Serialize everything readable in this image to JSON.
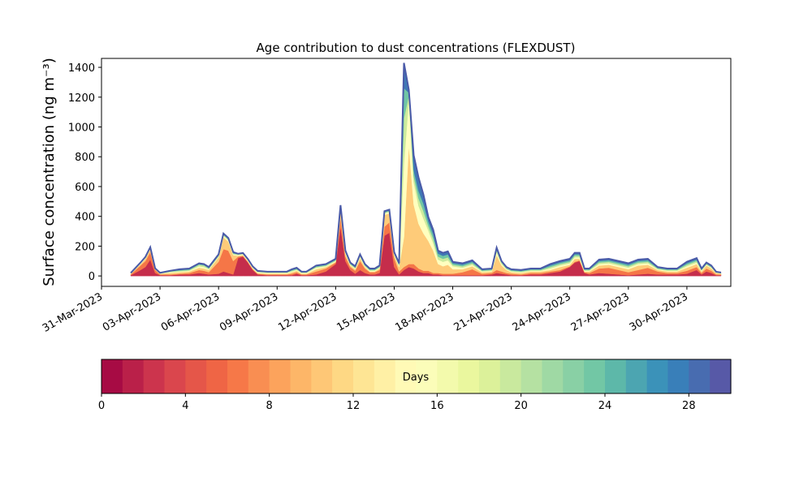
{
  "chart_data": {
    "type": "area",
    "title": "Age contribution to dust concentrations (FLEXDUST)",
    "ylabel": "Surface concentration (ng m⁻³)",
    "xlabel": "",
    "ylim": [
      -70,
      1460
    ],
    "xlim": [
      "2023-03-31T00:00",
      "2023-05-02T06:00"
    ],
    "yticks": [
      0,
      200,
      400,
      600,
      800,
      1000,
      1200,
      1400
    ],
    "xticks": [
      "31-Mar-2023",
      "03-Apr-2023",
      "06-Apr-2023",
      "09-Apr-2023",
      "12-Apr-2023",
      "15-Apr-2023",
      "18-Apr-2023",
      "21-Apr-2023",
      "24-Apr-2023",
      "27-Apr-2023",
      "30-Apr-2023"
    ],
    "x": [
      "2023-04-01T12:00",
      "2023-04-02T00:00",
      "2023-04-02T06:00",
      "2023-04-02T12:00",
      "2023-04-02T18:00",
      "2023-04-03T00:00",
      "2023-04-03T12:00",
      "2023-04-04T00:00",
      "2023-04-04T12:00",
      "2023-04-05T00:00",
      "2023-04-05T06:00",
      "2023-04-05T12:00",
      "2023-04-06T00:00",
      "2023-04-06T06:00",
      "2023-04-06T12:00",
      "2023-04-06T18:00",
      "2023-04-07T00:00",
      "2023-04-07T06:00",
      "2023-04-07T12:00",
      "2023-04-07T18:00",
      "2023-04-08T00:00",
      "2023-04-08T12:00",
      "2023-04-09T00:00",
      "2023-04-09T12:00",
      "2023-04-09T18:00",
      "2023-04-10T00:00",
      "2023-04-10T06:00",
      "2023-04-10T12:00",
      "2023-04-11T00:00",
      "2023-04-11T12:00",
      "2023-04-12T00:00",
      "2023-04-12T06:00",
      "2023-04-12T12:00",
      "2023-04-12T18:00",
      "2023-04-13T00:00",
      "2023-04-13T06:00",
      "2023-04-13T12:00",
      "2023-04-13T18:00",
      "2023-04-14T00:00",
      "2023-04-14T06:00",
      "2023-04-14T12:00",
      "2023-04-14T18:00",
      "2023-04-15T00:00",
      "2023-04-15T06:00",
      "2023-04-15T12:00",
      "2023-04-15T18:00",
      "2023-04-16T00:00",
      "2023-04-16T06:00",
      "2023-04-16T12:00",
      "2023-04-16T18:00",
      "2023-04-17T00:00",
      "2023-04-17T06:00",
      "2023-04-17T12:00",
      "2023-04-17T18:00",
      "2023-04-18T00:00",
      "2023-04-18T12:00",
      "2023-04-19T00:00",
      "2023-04-19T12:00",
      "2023-04-20T00:00",
      "2023-04-20T06:00",
      "2023-04-20T12:00",
      "2023-04-20T18:00",
      "2023-04-21T00:00",
      "2023-04-21T12:00",
      "2023-04-22T00:00",
      "2023-04-22T12:00",
      "2023-04-23T00:00",
      "2023-04-23T12:00",
      "2023-04-24T00:00",
      "2023-04-24T06:00",
      "2023-04-24T12:00",
      "2023-04-24T18:00",
      "2023-04-25T00:00",
      "2023-04-25T12:00",
      "2023-04-26T00:00",
      "2023-04-26T12:00",
      "2023-04-27T00:00",
      "2023-04-27T12:00",
      "2023-04-28T00:00",
      "2023-04-28T12:00",
      "2023-04-29T00:00",
      "2023-04-29T12:00",
      "2023-04-30T00:00",
      "2023-04-30T12:00",
      "2023-04-30T18:00",
      "2023-05-01T00:00",
      "2023-05-01T06:00",
      "2023-05-01T12:00",
      "2023-05-01T18:00"
    ],
    "series": [
      {
        "name": "0-4 days",
        "values": [
          5,
          40,
          60,
          110,
          20,
          5,
          5,
          10,
          10,
          20,
          15,
          10,
          15,
          30,
          20,
          10,
          120,
          130,
          90,
          40,
          10,
          5,
          5,
          5,
          5,
          15,
          5,
          5,
          10,
          30,
          80,
          330,
          100,
          40,
          15,
          40,
          20,
          10,
          10,
          20,
          270,
          290,
          60,
          10,
          40,
          60,
          50,
          30,
          20,
          20,
          10,
          10,
          5,
          5,
          5,
          5,
          5,
          5,
          10,
          20,
          15,
          10,
          5,
          5,
          10,
          10,
          20,
          30,
          60,
          90,
          100,
          20,
          10,
          20,
          15,
          10,
          5,
          10,
          15,
          10,
          10,
          10,
          15,
          40,
          10,
          30,
          20,
          5,
          5
        ]
      },
      {
        "name": "4-8 days",
        "values": [
          5,
          30,
          40,
          50,
          20,
          5,
          5,
          5,
          10,
          20,
          20,
          15,
          80,
          150,
          150,
          90,
          10,
          5,
          5,
          5,
          5,
          5,
          5,
          5,
          10,
          10,
          5,
          5,
          20,
          20,
          10,
          60,
          30,
          20,
          20,
          60,
          30,
          15,
          15,
          20,
          60,
          70,
          60,
          20,
          20,
          20,
          30,
          20,
          15,
          15,
          10,
          10,
          10,
          10,
          10,
          20,
          40,
          10,
          10,
          20,
          15,
          10,
          10,
          5,
          10,
          10,
          10,
          10,
          5,
          5,
          5,
          5,
          10,
          30,
          40,
          30,
          20,
          30,
          40,
          20,
          10,
          10,
          20,
          20,
          10,
          20,
          15,
          5,
          5
        ]
      },
      {
        "name": "8-12 days",
        "values": [
          5,
          10,
          15,
          20,
          5,
          5,
          10,
          10,
          10,
          15,
          15,
          15,
          30,
          80,
          60,
          40,
          5,
          5,
          5,
          5,
          5,
          5,
          5,
          5,
          10,
          10,
          5,
          5,
          15,
          10,
          5,
          60,
          20,
          10,
          10,
          20,
          10,
          5,
          5,
          10,
          80,
          60,
          20,
          30,
          200,
          800,
          400,
          300,
          250,
          200,
          150,
          60,
          50,
          60,
          30,
          20,
          20,
          10,
          10,
          100,
          40,
          20,
          10,
          10,
          10,
          10,
          10,
          20,
          10,
          20,
          10,
          5,
          10,
          20,
          20,
          20,
          20,
          30,
          20,
          10,
          10,
          10,
          20,
          20,
          10,
          20,
          15,
          10,
          5
        ]
      },
      {
        "name": "12-16 days",
        "values": [
          2,
          5,
          5,
          5,
          2,
          2,
          5,
          5,
          5,
          10,
          10,
          5,
          5,
          10,
          10,
          5,
          5,
          5,
          5,
          5,
          5,
          5,
          5,
          5,
          5,
          5,
          5,
          5,
          10,
          5,
          5,
          10,
          5,
          5,
          5,
          10,
          5,
          5,
          5,
          5,
          10,
          10,
          5,
          10,
          500,
          300,
          150,
          120,
          100,
          70,
          50,
          30,
          30,
          30,
          20,
          10,
          10,
          5,
          5,
          20,
          10,
          5,
          5,
          5,
          5,
          5,
          10,
          10,
          10,
          10,
          10,
          5,
          5,
          10,
          10,
          10,
          10,
          10,
          10,
          5,
          5,
          5,
          10,
          10,
          5,
          5,
          5,
          2,
          2
        ]
      },
      {
        "name": "16-20 days",
        "values": [
          2,
          2,
          5,
          5,
          2,
          2,
          5,
          5,
          5,
          10,
          10,
          5,
          5,
          5,
          5,
          5,
          5,
          5,
          5,
          5,
          5,
          5,
          5,
          5,
          5,
          5,
          5,
          5,
          5,
          5,
          5,
          5,
          5,
          5,
          5,
          5,
          5,
          5,
          5,
          5,
          5,
          5,
          5,
          5,
          300,
          30,
          40,
          50,
          50,
          30,
          30,
          20,
          20,
          20,
          10,
          10,
          10,
          5,
          5,
          10,
          10,
          5,
          5,
          5,
          5,
          5,
          10,
          10,
          10,
          10,
          10,
          5,
          5,
          10,
          10,
          10,
          10,
          10,
          10,
          5,
          5,
          5,
          10,
          10,
          5,
          5,
          5,
          2,
          2
        ]
      },
      {
        "name": "20-24 days",
        "values": [
          1,
          2,
          2,
          2,
          1,
          1,
          2,
          5,
          5,
          5,
          5,
          5,
          5,
          5,
          5,
          5,
          2,
          2,
          2,
          2,
          2,
          2,
          2,
          2,
          5,
          5,
          2,
          2,
          5,
          5,
          5,
          5,
          5,
          5,
          5,
          5,
          5,
          5,
          5,
          5,
          5,
          5,
          5,
          5,
          200,
          20,
          40,
          50,
          50,
          30,
          30,
          20,
          20,
          20,
          10,
          10,
          10,
          5,
          5,
          10,
          5,
          5,
          5,
          5,
          5,
          5,
          10,
          10,
          10,
          10,
          10,
          5,
          5,
          10,
          10,
          10,
          10,
          10,
          10,
          5,
          5,
          5,
          10,
          10,
          5,
          5,
          5,
          2,
          2
        ]
      },
      {
        "name": "24-30 days",
        "values": [
          0,
          1,
          1,
          1,
          1,
          1,
          2,
          5,
          5,
          5,
          5,
          5,
          5,
          5,
          5,
          5,
          2,
          2,
          2,
          2,
          2,
          2,
          2,
          2,
          5,
          5,
          2,
          2,
          5,
          5,
          5,
          5,
          5,
          5,
          5,
          5,
          5,
          5,
          5,
          5,
          5,
          5,
          5,
          5,
          170,
          20,
          100,
          90,
          60,
          30,
          30,
          20,
          20,
          20,
          10,
          10,
          10,
          5,
          5,
          10,
          5,
          5,
          5,
          5,
          5,
          5,
          10,
          10,
          10,
          10,
          10,
          5,
          5,
          10,
          10,
          10,
          10,
          10,
          10,
          5,
          5,
          5,
          10,
          10,
          5,
          5,
          5,
          2,
          2
        ]
      }
    ],
    "colorbar": {
      "label": "Days",
      "range": [
        0,
        30
      ],
      "ticks": [
        0,
        4,
        8,
        12,
        16,
        20,
        24,
        28
      ],
      "colormap": "Spectral",
      "bins": 30
    }
  }
}
